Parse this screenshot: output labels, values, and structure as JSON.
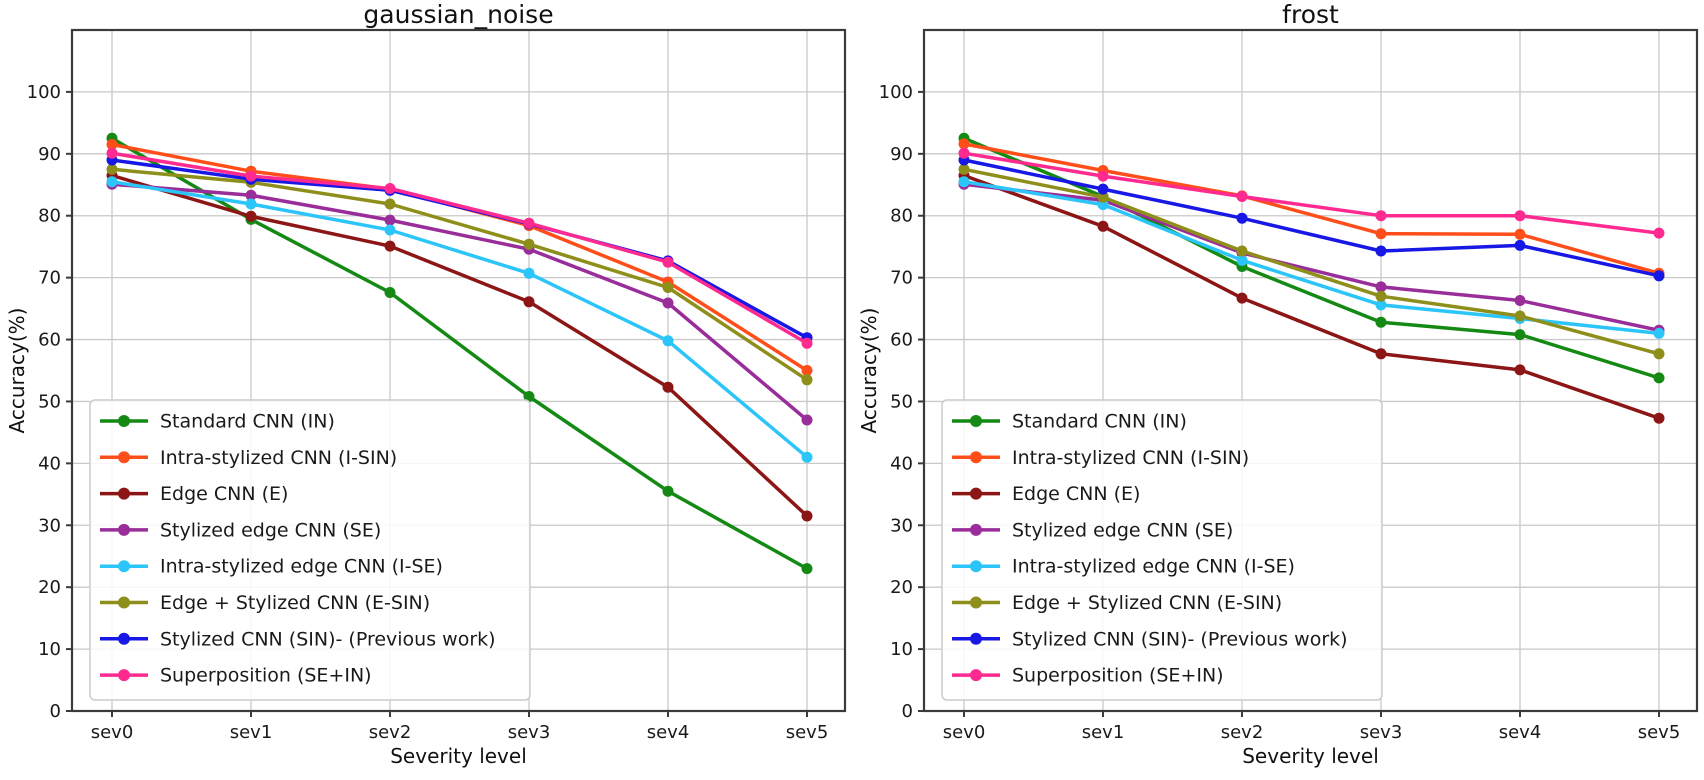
{
  "figure": {
    "background": "#ffffff",
    "grid_color": "#c9c9c9",
    "axis_color": "#3a3a3a",
    "tick_label_color": "#1a1a1a",
    "text_color": "#111111"
  },
  "chart_data": [
    {
      "type": "line",
      "title": "gaussian_noise",
      "xlabel": "Severity level",
      "ylabel": "Accuracy(%)",
      "categories": [
        "sev0",
        "sev1",
        "sev2",
        "sev3",
        "sev4",
        "sev5"
      ],
      "yticks": [
        0,
        10,
        20,
        30,
        40,
        50,
        60,
        70,
        80,
        90,
        100
      ],
      "ylim": [
        0,
        110
      ],
      "grid": true,
      "legend_position": "lower left",
      "series": [
        {
          "name": "Standard CNN (IN)",
          "color": "#148a14",
          "values": [
            92.5,
            79.4,
            67.6,
            50.8,
            35.5,
            23.0
          ]
        },
        {
          "name": "Intra-stylized CNN (I-SIN)",
          "color": "#ff4e1a",
          "values": [
            91.5,
            87.2,
            84.3,
            78.4,
            69.3,
            55.0
          ]
        },
        {
          "name": "Edge CNN (E)",
          "color": "#8c1515",
          "values": [
            86.5,
            79.9,
            75.1,
            66.1,
            52.3,
            31.5
          ]
        },
        {
          "name": "Stylized edge CNN (SE)",
          "color": "#992d99",
          "values": [
            85.1,
            83.3,
            79.3,
            74.6,
            65.9,
            47.0
          ]
        },
        {
          "name": "Intra-stylized edge CNN (I-SE)",
          "color": "#2cc5f9",
          "values": [
            85.5,
            81.9,
            77.7,
            70.7,
            59.8,
            41.0
          ]
        },
        {
          "name": "Edge + Stylized CNN (E-SIN)",
          "color": "#8e8e1b",
          "values": [
            87.5,
            85.4,
            81.9,
            75.4,
            68.4,
            53.5
          ]
        },
        {
          "name": "Stylized CNN (SIN)- (Previous work)",
          "color": "#1717e6",
          "values": [
            89.0,
            85.9,
            84.1,
            78.7,
            72.7,
            60.3
          ]
        },
        {
          "name": "Superposition (SE+IN)",
          "color": "#ff2a90",
          "values": [
            90.1,
            86.4,
            84.4,
            78.8,
            72.5,
            59.4
          ]
        }
      ]
    },
    {
      "type": "line",
      "title": "frost",
      "xlabel": "Severity level",
      "ylabel": "Accuracy(%)",
      "categories": [
        "sev0",
        "sev1",
        "sev2",
        "sev3",
        "sev4",
        "sev5"
      ],
      "yticks": [
        0,
        10,
        20,
        30,
        40,
        50,
        60,
        70,
        80,
        90,
        100
      ],
      "ylim": [
        0,
        110
      ],
      "grid": true,
      "legend_position": "lower left",
      "series": [
        {
          "name": "Standard CNN (IN)",
          "color": "#148a14",
          "values": [
            92.5,
            83.1,
            71.8,
            62.8,
            60.8,
            53.8
          ]
        },
        {
          "name": "Intra-stylized CNN (I-SIN)",
          "color": "#ff4e1a",
          "values": [
            91.6,
            87.3,
            83.2,
            77.1,
            77.0,
            70.7
          ]
        },
        {
          "name": "Edge CNN (E)",
          "color": "#8c1515",
          "values": [
            86.5,
            78.3,
            66.7,
            57.7,
            55.1,
            47.3
          ]
        },
        {
          "name": "Stylized edge CNN (SE)",
          "color": "#992d99",
          "values": [
            85.1,
            82.5,
            74.0,
            68.5,
            66.3,
            61.5
          ]
        },
        {
          "name": "Intra-stylized edge CNN (I-SE)",
          "color": "#2cc5f9",
          "values": [
            85.5,
            81.8,
            72.8,
            65.6,
            63.4,
            61.0
          ]
        },
        {
          "name": "Edge + Stylized CNN (E-SIN)",
          "color": "#8e8e1b",
          "values": [
            87.5,
            83.0,
            74.3,
            67.0,
            63.8,
            57.7
          ]
        },
        {
          "name": "Stylized CNN (SIN)- (Previous work)",
          "color": "#1717e6",
          "values": [
            89.0,
            84.3,
            79.6,
            74.3,
            75.2,
            70.3
          ]
        },
        {
          "name": "Superposition (SE+IN)",
          "color": "#ff2a90",
          "values": [
            90.1,
            86.4,
            83.1,
            80.0,
            80.0,
            77.2
          ]
        }
      ]
    }
  ]
}
